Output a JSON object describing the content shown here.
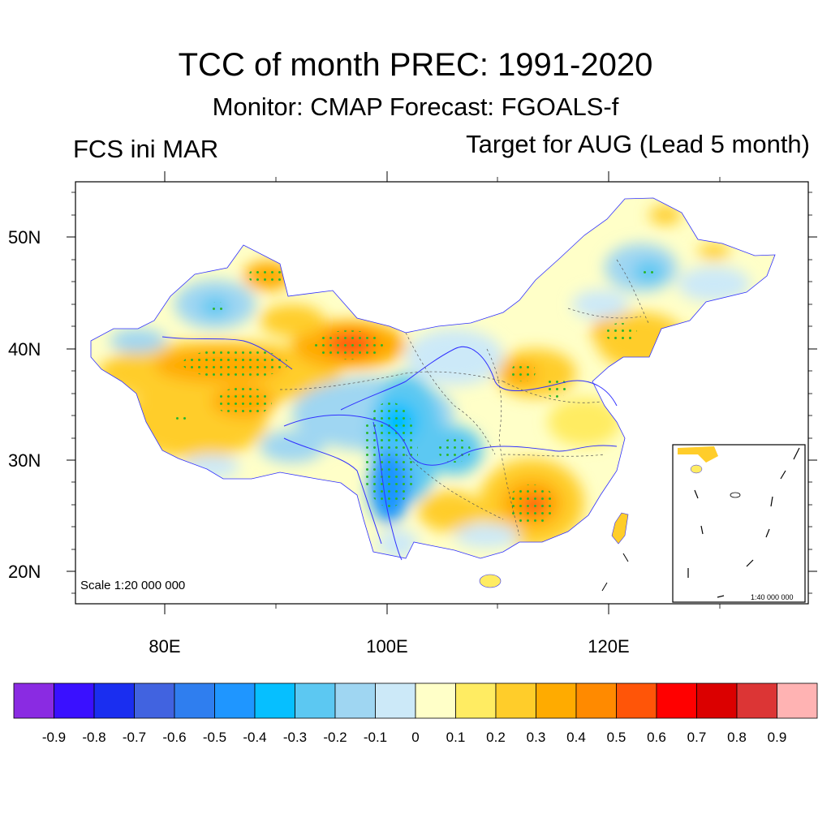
{
  "title": "TCC of month PREC: 1991-2020",
  "subtitle": "Monitor: CMAP   Forecast: FGOALS-f",
  "left_label": "FCS ini MAR",
  "right_label": "Target for AUG (Lead 5 month)",
  "map": {
    "scale_label": "Scale 1:20 000 000",
    "inset_scale_label": "1:40 000 000",
    "lat_ticks": [
      "50N",
      "40N",
      "30N",
      "20N"
    ],
    "lon_ticks": [
      "80E",
      "100E",
      "120E"
    ],
    "lon_range": [
      72,
      138
    ],
    "lat_range": [
      16.9,
      55
    ],
    "stipple_color": "#2bb52b"
  },
  "colorbar": {
    "colors": [
      "#8a2be2",
      "#3a10ff",
      "#1a2ef0",
      "#4163e0",
      "#2f7eef",
      "#1f96ff",
      "#06bfff",
      "#5cc8f2",
      "#9fd6f2",
      "#cce9f8",
      "#ffffc8",
      "#ffec62",
      "#ffcd2a",
      "#ffab00",
      "#ff8a00",
      "#ff5508",
      "#ff0000",
      "#db0000",
      "#dc3535",
      "#ffb3b3"
    ],
    "labels": [
      "-0.9",
      "-0.8",
      "-0.7",
      "-0.6",
      "-0.5",
      "-0.4",
      "-0.3",
      "-0.2",
      "-0.1",
      "0",
      "0.1",
      "0.2",
      "0.3",
      "0.4",
      "0.5",
      "0.6",
      "0.7",
      "0.8",
      "0.9"
    ]
  }
}
